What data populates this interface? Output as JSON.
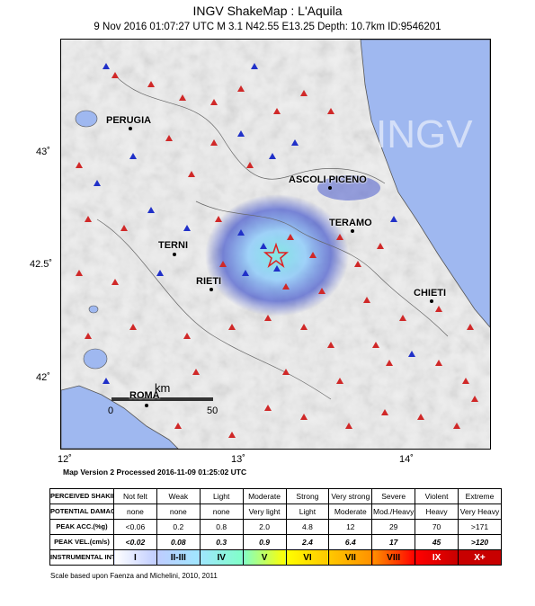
{
  "header": {
    "title": "INGV ShakeMap : L'Aquila",
    "subtitle": "9 Nov 2016 01:07:27 UTC   M 3.1   N42.55 E13.25   Depth: 10.7km   ID:9546201"
  },
  "map": {
    "watermark": "INGV",
    "cities": [
      {
        "name": "PERUGIA"
      },
      {
        "name": "ASCOLI PICENO"
      },
      {
        "name": "TERAMO"
      },
      {
        "name": "TERNI"
      },
      {
        "name": "RIETI"
      },
      {
        "name": "CHIETI"
      },
      {
        "name": "ROMA"
      }
    ],
    "lat_ticks": [
      "43˚",
      "42.5˚",
      "42˚"
    ],
    "lon_ticks": [
      "12˚",
      "13˚",
      "14˚"
    ],
    "scalebar": {
      "unit": "km",
      "start": "0",
      "end": "50"
    },
    "colors": {
      "sea": "#9fb8f0",
      "land": "#efefef",
      "epicenter": "#e02020"
    }
  },
  "processed": "Map Version 2 Processed 2016-11-09 01:25:02 UTC",
  "legend": {
    "rows": [
      {
        "header": "PERCEIVED SHAKING",
        "values": [
          "Not felt",
          "Weak",
          "Light",
          "Moderate",
          "Strong",
          "Very strong",
          "Severe",
          "Violent",
          "Extreme"
        ]
      },
      {
        "header": "POTENTIAL DAMAGE",
        "values": [
          "none",
          "none",
          "none",
          "Very light",
          "Light",
          "Moderate",
          "Mod./Heavy",
          "Heavy",
          "Very Heavy"
        ]
      },
      {
        "header": "PEAK ACC.(%g)",
        "values": [
          "<0.06",
          "0.2",
          "0.8",
          "2.0",
          "4.8",
          "12",
          "29",
          "70",
          ">171"
        ]
      },
      {
        "header": "PEAK VEL.(cm/s)",
        "values": [
          "<0.02",
          "0.08",
          "0.3",
          "0.9",
          "2.4",
          "6.4",
          "17",
          "45",
          ">120"
        ]
      },
      {
        "header": "INSTRUMENTAL INTENSITY",
        "values": [
          "I",
          "II-III",
          "IV",
          "V",
          "VI",
          "VII",
          "VIII",
          "IX",
          "X+"
        ]
      }
    ],
    "intensity_colors": [
      "#ffffff",
      "#bfccff",
      "#a0e6ff",
      "#80ffc8",
      "#ffff00",
      "#ffc800",
      "#ff9100",
      "#ff0000",
      "#c80000"
    ]
  },
  "scale_note": "Scale based upon Faenza and Michelini, 2010, 2011"
}
